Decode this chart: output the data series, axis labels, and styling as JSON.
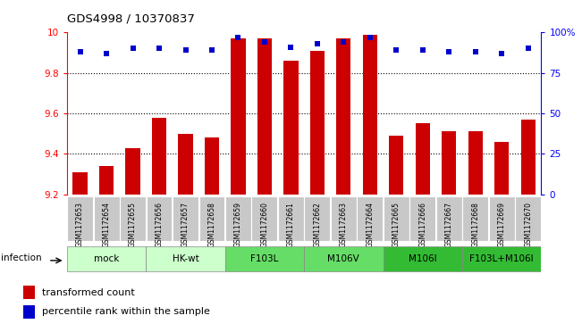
{
  "title": "GDS4998 / 10370837",
  "samples": [
    "GSM1172653",
    "GSM1172654",
    "GSM1172655",
    "GSM1172656",
    "GSM1172657",
    "GSM1172658",
    "GSM1172659",
    "GSM1172660",
    "GSM1172661",
    "GSM1172662",
    "GSM1172663",
    "GSM1172664",
    "GSM1172665",
    "GSM1172666",
    "GSM1172667",
    "GSM1172668",
    "GSM1172669",
    "GSM1172670"
  ],
  "bar_values": [
    9.31,
    9.34,
    9.43,
    9.58,
    9.5,
    9.48,
    9.97,
    9.97,
    9.86,
    9.91,
    9.97,
    9.99,
    9.49,
    9.55,
    9.51,
    9.51,
    9.46,
    9.57
  ],
  "percentile_values": [
    88,
    87,
    90,
    90,
    89,
    89,
    97,
    94,
    91,
    93,
    94,
    97,
    89,
    89,
    88,
    88,
    87,
    90
  ],
  "ylim_left": [
    9.2,
    10.0
  ],
  "ylim_right": [
    0,
    100
  ],
  "bar_color": "#cc0000",
  "dot_color": "#0000cc",
  "left_ticks": [
    9.2,
    9.4,
    9.6,
    9.8,
    10.0
  ],
  "left_tick_labels": [
    "9.2",
    "9.4",
    "9.6",
    "9.8",
    "10"
  ],
  "right_ticks": [
    0,
    25,
    50,
    75,
    100
  ],
  "right_tick_labels": [
    "0",
    "25",
    "50",
    "75",
    "100%"
  ],
  "grid_values": [
    9.4,
    9.6,
    9.8
  ],
  "groups": [
    {
      "label": "mock",
      "start": 0,
      "end": 2,
      "color": "#ccffcc"
    },
    {
      "label": "HK-wt",
      "start": 3,
      "end": 5,
      "color": "#ccffcc"
    },
    {
      "label": "F103L",
      "start": 6,
      "end": 8,
      "color": "#66dd66"
    },
    {
      "label": "M106V",
      "start": 9,
      "end": 11,
      "color": "#66dd66"
    },
    {
      "label": "M106I",
      "start": 12,
      "end": 14,
      "color": "#33bb33"
    },
    {
      "label": "F103L+M106I",
      "start": 15,
      "end": 17,
      "color": "#33bb33"
    }
  ],
  "infection_label": "infection",
  "legend_bar_label": "transformed count",
  "legend_dot_label": "percentile rank within the sample",
  "bar_width": 0.55,
  "cell_color": "#c8c8c8"
}
